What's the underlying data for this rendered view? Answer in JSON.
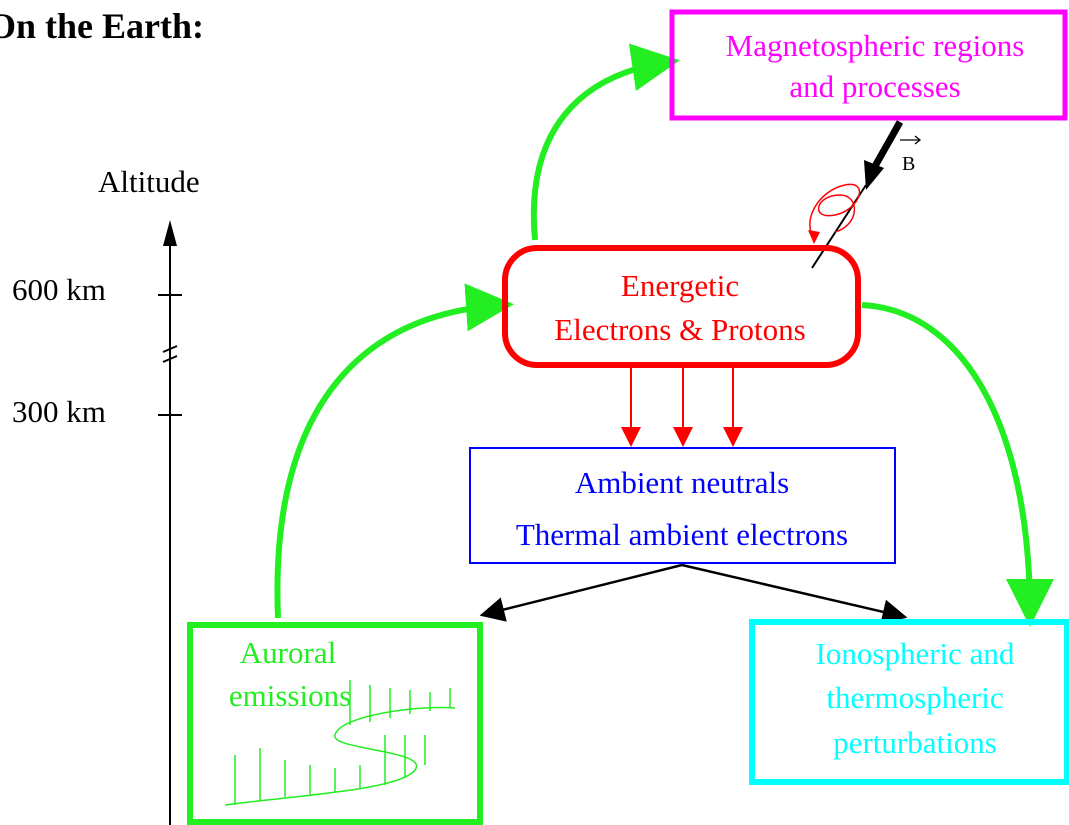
{
  "header": {
    "title": "On the Earth:"
  },
  "axis": {
    "label": "Altitude",
    "ticks": [
      "600 km",
      "300 km"
    ]
  },
  "nodes": [
    {
      "lines": [
        "Magnetospheric regions",
        "and processes"
      ]
    },
    {
      "lines": [
        "Energetic",
        "Electrons &  Protons"
      ]
    },
    {
      "lines": [
        "Ambient neutrals",
        "Thermal ambient electrons"
      ]
    },
    {
      "lines": [
        "Auroral",
        "emissions"
      ]
    },
    {
      "lines": [
        "Ionospheric and",
        "thermospheric",
        "perturbations"
      ]
    }
  ],
  "field": {
    "label": "B"
  }
}
